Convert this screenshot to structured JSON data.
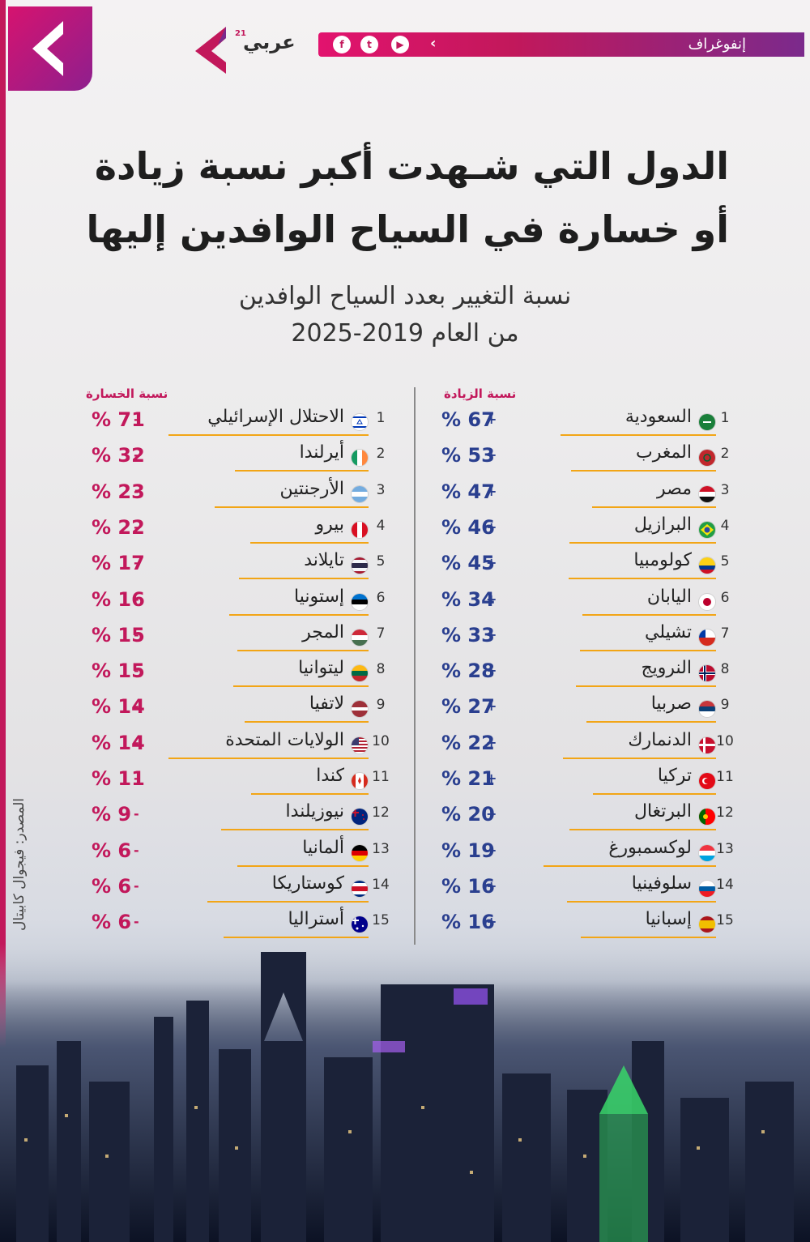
{
  "header": {
    "category": "إنفوغراف",
    "brand": "عربي",
    "brand_number": "21",
    "social_icons": [
      "facebook-icon",
      "twitter-icon",
      "youtube-icon",
      "arrow-logo-icon"
    ]
  },
  "title": {
    "line1": "الدول التي شـهدت أكبر نسبة زيادة",
    "line2": "أو خسارة في السياح الوافدين إليها"
  },
  "subtitle": {
    "line1": "نسبة التغيير بعدد السياح الوافدين",
    "line2": "من العام 2019-2025"
  },
  "increase": {
    "header": "نسبة الزيادة",
    "sign": "+",
    "rows": [
      {
        "rank": "1",
        "country": "السعودية",
        "value": "% 67",
        "flag": "saudi-arabia"
      },
      {
        "rank": "2",
        "country": "المغرب",
        "value": "% 53",
        "flag": "morocco"
      },
      {
        "rank": "3",
        "country": "مصر",
        "value": "% 47",
        "flag": "egypt"
      },
      {
        "rank": "4",
        "country": "البرازيل",
        "value": "% 46",
        "flag": "brazil"
      },
      {
        "rank": "5",
        "country": "كولومبيا",
        "value": "% 45",
        "flag": "colombia"
      },
      {
        "rank": "6",
        "country": "اليابان",
        "value": "% 34",
        "flag": "japan"
      },
      {
        "rank": "7",
        "country": "تشيلي",
        "value": "% 33",
        "flag": "chile"
      },
      {
        "rank": "8",
        "country": "النرويج",
        "value": "% 28",
        "flag": "norway"
      },
      {
        "rank": "9",
        "country": "صربيا",
        "value": "% 27",
        "flag": "serbia"
      },
      {
        "rank": "10",
        "country": "الدنمارك",
        "value": "% 22",
        "flag": "denmark"
      },
      {
        "rank": "11",
        "country": "تركيا",
        "value": "% 21",
        "flag": "turkey"
      },
      {
        "rank": "12",
        "country": "البرتغال",
        "value": "% 20",
        "flag": "portugal"
      },
      {
        "rank": "13",
        "country": "لوكسمبورغ",
        "value": "% 19",
        "flag": "luxembourg"
      },
      {
        "rank": "14",
        "country": "سلوفينيا",
        "value": "% 16",
        "flag": "slovenia"
      },
      {
        "rank": "15",
        "country": "إسبانيا",
        "value": "% 16",
        "flag": "spain"
      }
    ]
  },
  "loss": {
    "header": "نسبة الخسارة",
    "sign": "-",
    "rows": [
      {
        "rank": "1",
        "country": "الاحتلال الإسرائيلي",
        "value": "% 71",
        "flag": "israel"
      },
      {
        "rank": "2",
        "country": "أيرلندا",
        "value": "% 32",
        "flag": "ireland"
      },
      {
        "rank": "3",
        "country": "الأرجنتين",
        "value": "% 23",
        "flag": "argentina"
      },
      {
        "rank": "4",
        "country": "بيرو",
        "value": "% 22",
        "flag": "peru"
      },
      {
        "rank": "5",
        "country": "تايلاند",
        "value": "% 17",
        "flag": "thailand"
      },
      {
        "rank": "6",
        "country": "إستونيا",
        "value": "% 16",
        "flag": "estonia"
      },
      {
        "rank": "7",
        "country": "المجر",
        "value": "% 15",
        "flag": "hungary"
      },
      {
        "rank": "8",
        "country": "ليتوانيا",
        "value": "% 15",
        "flag": "lithuania"
      },
      {
        "rank": "9",
        "country": "لاتفيا",
        "value": "% 14",
        "flag": "latvia"
      },
      {
        "rank": "10",
        "country": "الولايات المتحدة",
        "value": "% 14",
        "flag": "united-states"
      },
      {
        "rank": "11",
        "country": "كندا",
        "value": "% 11",
        "flag": "canada"
      },
      {
        "rank": "12",
        "country": "نيوزيلندا",
        "value": "% 9",
        "flag": "new-zealand"
      },
      {
        "rank": "13",
        "country": "ألمانيا",
        "value": "% 6",
        "flag": "germany"
      },
      {
        "rank": "14",
        "country": "كوستاريكا",
        "value": "% 6",
        "flag": "costa-rica"
      },
      {
        "rank": "15",
        "country": "أستراليا",
        "value": "% 6",
        "flag": "australia"
      }
    ]
  },
  "source": "المصدر: فيجوال كابيتال",
  "colors": {
    "brand": "#c2185b",
    "purple": "#7b2a8c",
    "increase": "#2a3f8f",
    "loss": "#c2185b",
    "underline": "#f2a516"
  }
}
